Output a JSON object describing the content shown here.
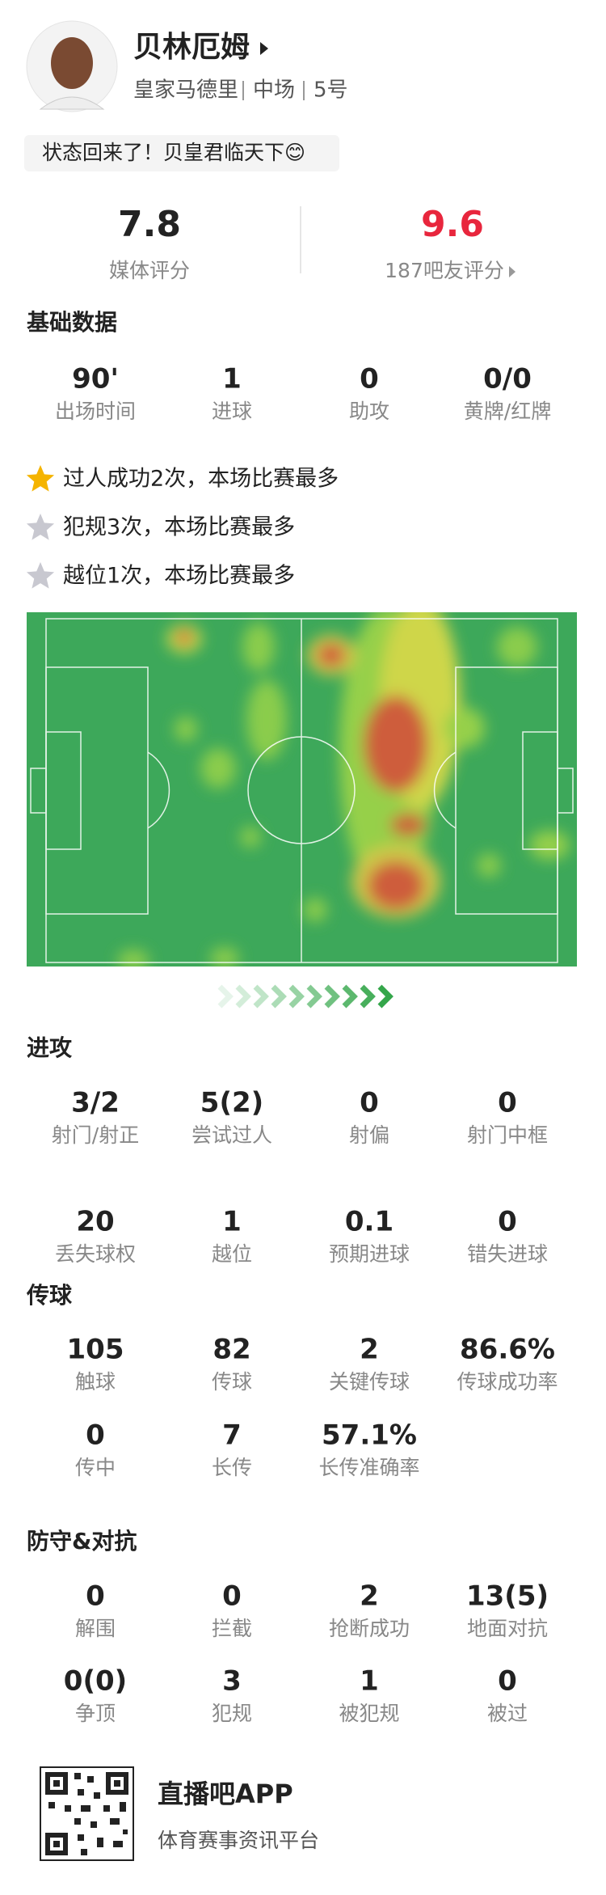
{
  "header": {
    "name": "贝林厄姆",
    "team": "皇家马德里",
    "position": "中场",
    "number": "5号",
    "slogan": "状态回来了！贝皇君临天下😊"
  },
  "ratings": [
    {
      "value": "7.8",
      "label": "媒体评分"
    },
    {
      "value": "9.6",
      "label": "187吧友评分"
    }
  ],
  "highlights": [
    "过人成功2次，本场比赛最多",
    "犯规3次，本场比赛最多",
    "越位1次，本场比赛最多"
  ],
  "sections": [
    {
      "title": "基础数据",
      "stats": [
        {
          "value": "90'",
          "label": "出场时间"
        },
        {
          "value": "1",
          "label": "进球"
        },
        {
          "value": "0",
          "label": "助攻"
        },
        {
          "value": "0/0",
          "label": "黄牌/红牌"
        }
      ]
    },
    {
      "title": "进攻",
      "stats": [
        {
          "value": "3/2",
          "label": "射门/射正"
        },
        {
          "value": "5(2)",
          "label": "尝试过人"
        },
        {
          "value": "0",
          "label": "射偏"
        },
        {
          "value": "0",
          "label": "射门中框"
        },
        {
          "value": "20",
          "label": "丢失球权"
        },
        {
          "value": "1",
          "label": "越位"
        },
        {
          "value": "0.1",
          "label": "预期进球"
        },
        {
          "value": "0",
          "label": "错失进球"
        }
      ]
    },
    {
      "title": "传球",
      "stats": [
        {
          "value": "105",
          "label": "触球"
        },
        {
          "value": "82",
          "label": "传球"
        },
        {
          "value": "2",
          "label": "关键传球"
        },
        {
          "value": "86.6%",
          "label": "传球成功率"
        },
        {
          "value": "0",
          "label": "传中"
        },
        {
          "value": "7",
          "label": "长传"
        },
        {
          "value": "57.1%",
          "label": "长传准确率"
        }
      ]
    },
    {
      "title": "防守&对抗",
      "stats": [
        {
          "value": "0",
          "label": "解围"
        },
        {
          "value": "0",
          "label": "拦截"
        },
        {
          "value": "2",
          "label": "抢断成功"
        },
        {
          "value": "13(5)",
          "label": "地面对抗"
        },
        {
          "value": "0(0)",
          "label": "争顶"
        },
        {
          "value": "3",
          "label": "犯规"
        },
        {
          "value": "1",
          "label": "被犯规"
        },
        {
          "value": "0",
          "label": "被过"
        }
      ]
    }
  ],
  "footer": {
    "app": "直播吧APP",
    "tagline": "体育赛事资讯平台"
  }
}
